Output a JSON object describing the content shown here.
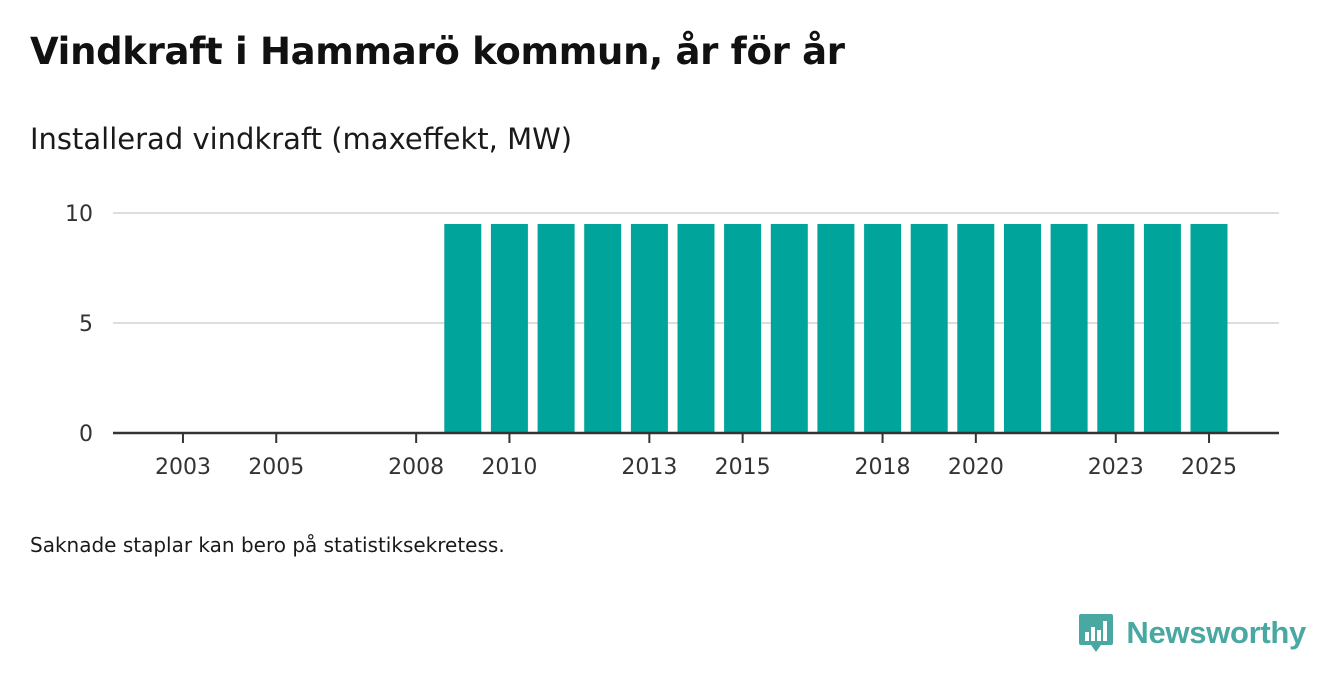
{
  "header": {
    "title": "Vindkraft i Hammarö kommun, år för år",
    "subtitle": "Installerad vindkraft (maxeffekt, MW)"
  },
  "footnote": "Saknade staplar kan bero på statistiksekretess.",
  "brand": {
    "name": "Newsworthy",
    "logo_icon": "newsworthy-logo-icon",
    "color": "#4aa8a2"
  },
  "colors": {
    "bar": "#00a49a",
    "grid": "#dddddd",
    "axis": "#333333",
    "tick_text": "#333333"
  },
  "chart_data": {
    "type": "bar",
    "title": "Vindkraft i Hammarö kommun, år för år",
    "subtitle": "Installerad vindkraft (maxeffekt, MW)",
    "xlabel": "",
    "ylabel": "Installerad vindkraft (maxeffekt, MW)",
    "x_range": [
      2001.5,
      2026.5
    ],
    "ylim": [
      0,
      10
    ],
    "y_ticks": [
      0,
      5,
      10
    ],
    "x_ticks": [
      2003,
      2005,
      2008,
      2010,
      2013,
      2015,
      2018,
      2020,
      2023,
      2025
    ],
    "grid": true,
    "categories": [
      2009,
      2010,
      2011,
      2012,
      2013,
      2014,
      2015,
      2016,
      2017,
      2018,
      2019,
      2020,
      2021,
      2022,
      2023,
      2024,
      2025
    ],
    "values": [
      9.5,
      9.5,
      9.5,
      9.5,
      9.5,
      9.5,
      9.5,
      9.5,
      9.5,
      9.5,
      9.5,
      9.5,
      9.5,
      9.5,
      9.5,
      9.5,
      9.5
    ]
  }
}
